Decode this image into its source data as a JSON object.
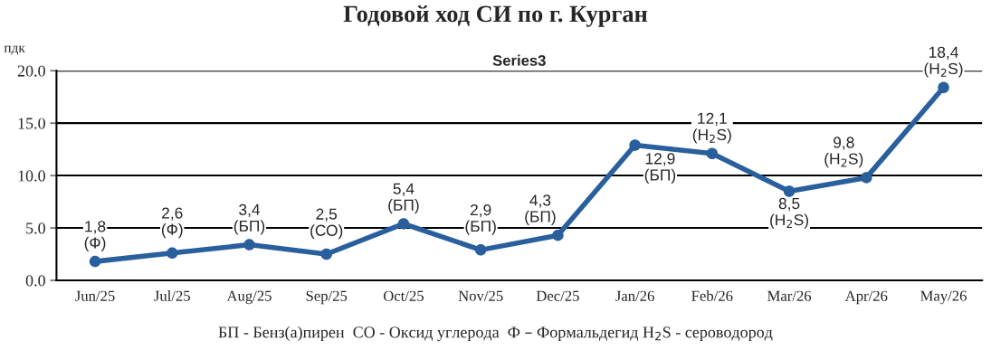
{
  "chart_data": {
    "type": "line",
    "title": "Годовой ход СИ по г. Курган",
    "subtitle": "Series3",
    "ylabel": "пдк",
    "categories": [
      "Jun/25",
      "Jul/25",
      "Aug/25",
      "Sep/25",
      "Oct/25",
      "Nov/25",
      "Dec/25",
      "Jan/26",
      "Feb/26",
      "Mar/26",
      "Apr/26",
      "May/26"
    ],
    "series": [
      {
        "color": "#2a5f9e",
        "values": [
          1.8,
          2.6,
          3.4,
          2.5,
          5.4,
          2.9,
          4.3,
          12.9,
          12.1,
          8.5,
          9.8,
          18.4
        ],
        "value_labels": [
          "1,8\n(Ф)",
          "2,6\n(Ф)",
          "3,4\n(БП)",
          "2,5\n(СО)",
          "5,4\n(БП)",
          "2,9\n(БП)",
          "4,3\n(БП)",
          "12,9\n(БП)",
          "12,1\n(H$_{2}$S)",
          "8,5\n(H$_{2}$S)",
          "9,8\n(H$_{2}$S)",
          "18,4\n(H$_{2}$S)"
        ]
      }
    ],
    "ylim": [
      0,
      20
    ],
    "yticks": [
      {
        "value": 0,
        "label": "0.0"
      },
      {
        "value": 5,
        "label": "5.0"
      },
      {
        "value": 10,
        "label": "10.0"
      },
      {
        "value": 15,
        "label": "15.0"
      },
      {
        "value": 20,
        "label": "20.0"
      }
    ],
    "grid": "y",
    "legend": false,
    "marker": "circle",
    "line_style": "solid",
    "annotations": [
      "БП - Бенз(а)пирен  СО - Оксид углерода  Ф – Формальдегид H$_{2}$S - сероводород"
    ]
  }
}
